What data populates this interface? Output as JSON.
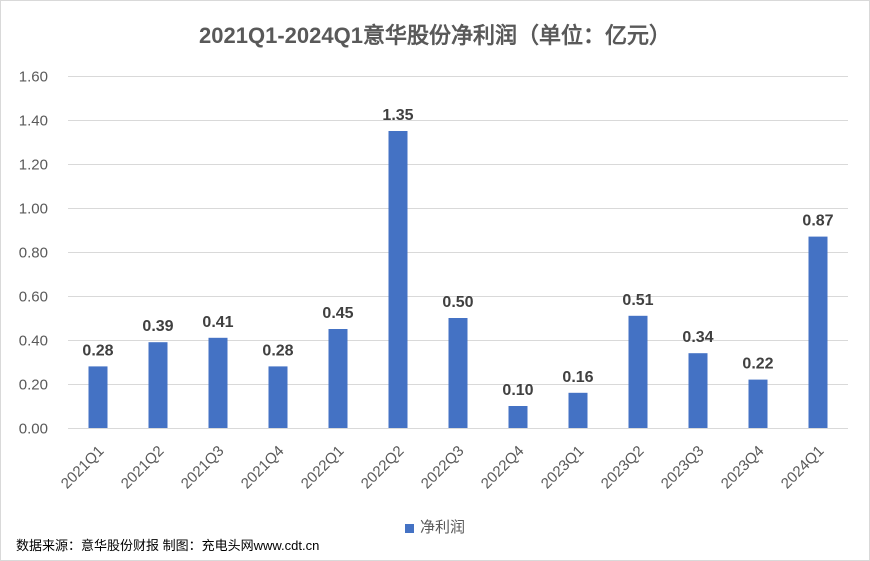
{
  "chart_data": {
    "type": "bar",
    "title": "2021Q1-2024Q1意华股份净利润（单位：亿元）",
    "categories": [
      "2021Q1",
      "2021Q2",
      "2021Q3",
      "2021Q4",
      "2022Q1",
      "2022Q2",
      "2022Q3",
      "2022Q4",
      "2023Q1",
      "2023Q2",
      "2023Q3",
      "2023Q4",
      "2024Q1"
    ],
    "series": [
      {
        "name": "净利润",
        "values": [
          0.28,
          0.39,
          0.41,
          0.28,
          0.45,
          1.35,
          0.5,
          0.1,
          0.16,
          0.51,
          0.34,
          0.22,
          0.87
        ],
        "color": "#4472C4"
      }
    ],
    "xlabel": "",
    "ylabel": "",
    "ylim": [
      0,
      1.6
    ],
    "yticks": [
      "0.00",
      "0.20",
      "0.40",
      "0.60",
      "0.80",
      "1.00",
      "1.20",
      "1.40",
      "1.60"
    ],
    "grid": true,
    "legend": "bottom-center",
    "data_labels": true,
    "colors": {
      "gridline": "#D9D9D9",
      "axis_text": "#595959",
      "data_label_text": "#404040"
    }
  },
  "source": "数据来源：意华股份财报 制图：充电头网www.cdt.cn"
}
